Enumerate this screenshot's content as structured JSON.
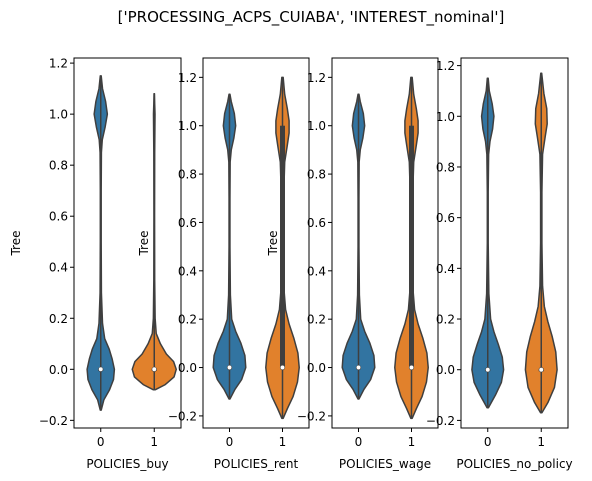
{
  "figure": {
    "title": "['PROCESSING_ACPS_CUIABA', 'INTEREST_nominal']"
  },
  "colors": {
    "category_0": "#3274A1",
    "category_1": "#E1812C",
    "outline": "#3f3f3f",
    "box": "#3f3f3f",
    "median": "#ffffff"
  },
  "chart_data": [
    {
      "type": "violin",
      "xlabel": "POLICIES_buy",
      "ylabel": "Tree",
      "categories": [
        "0",
        "1"
      ],
      "ylim": [
        -0.23,
        1.22
      ],
      "yticks": [
        -0.2,
        0.0,
        0.2,
        0.4,
        0.6,
        0.8,
        1.0,
        1.2
      ],
      "ytick_labels": [
        "−0.2",
        "0.0",
        "0.2",
        "0.4",
        "0.6",
        "0.8",
        "1.0",
        "1.2"
      ],
      "series": [
        {
          "category": "0",
          "min": -0.16,
          "max": 1.15,
          "median": 0.0,
          "q1": 0.0,
          "q3": 0.0,
          "density": [
            [
              -0.16,
              0.02
            ],
            [
              -0.12,
              0.14
            ],
            [
              -0.08,
              0.4
            ],
            [
              -0.04,
              0.58
            ],
            [
              0.0,
              0.62
            ],
            [
              0.04,
              0.52
            ],
            [
              0.08,
              0.38
            ],
            [
              0.12,
              0.18
            ],
            [
              0.18,
              0.08
            ],
            [
              0.3,
              0.03
            ],
            [
              0.5,
              0.02
            ],
            [
              0.7,
              0.02
            ],
            [
              0.85,
              0.03
            ],
            [
              0.9,
              0.07
            ],
            [
              0.95,
              0.2
            ],
            [
              1.0,
              0.3
            ],
            [
              1.05,
              0.22
            ],
            [
              1.1,
              0.08
            ],
            [
              1.15,
              0.02
            ]
          ]
        },
        {
          "category": "1",
          "min": -0.08,
          "max": 1.08,
          "median": 0.0,
          "q1": 0.0,
          "q3": 0.0,
          "density": [
            [
              -0.08,
              0.05
            ],
            [
              -0.06,
              0.5
            ],
            [
              -0.03,
              0.9
            ],
            [
              0.0,
              1.0
            ],
            [
              0.03,
              0.88
            ],
            [
              0.06,
              0.55
            ],
            [
              0.1,
              0.28
            ],
            [
              0.14,
              0.09
            ],
            [
              0.2,
              0.04
            ],
            [
              0.35,
              0.02
            ],
            [
              0.6,
              0.015
            ],
            [
              0.85,
              0.02
            ],
            [
              0.95,
              0.03
            ],
            [
              1.0,
              0.035
            ],
            [
              1.04,
              0.02
            ],
            [
              1.08,
              0.01
            ]
          ]
        }
      ]
    },
    {
      "type": "violin",
      "xlabel": "POLICIES_rent",
      "ylabel": "Tree",
      "categories": [
        "0",
        "1"
      ],
      "ylim": [
        -0.25,
        1.28
      ],
      "yticks": [
        -0.2,
        0.0,
        0.2,
        0.4,
        0.6,
        0.8,
        1.0,
        1.2
      ],
      "ytick_labels": [
        "−0.2",
        "0.0",
        "0.2",
        "0.4",
        "0.6",
        "0.8",
        "1.0",
        "1.2"
      ],
      "series": [
        {
          "category": "0",
          "min": -0.13,
          "max": 1.13,
          "median": 0.0,
          "q1": 0.0,
          "q3": 0.0,
          "density": [
            [
              -0.13,
              0.02
            ],
            [
              -0.09,
              0.25
            ],
            [
              -0.05,
              0.55
            ],
            [
              0.0,
              0.74
            ],
            [
              0.05,
              0.7
            ],
            [
              0.1,
              0.52
            ],
            [
              0.15,
              0.28
            ],
            [
              0.2,
              0.1
            ],
            [
              0.3,
              0.04
            ],
            [
              0.5,
              0.02
            ],
            [
              0.7,
              0.02
            ],
            [
              0.85,
              0.03
            ],
            [
              0.9,
              0.08
            ],
            [
              0.95,
              0.2
            ],
            [
              1.0,
              0.28
            ],
            [
              1.05,
              0.22
            ],
            [
              1.1,
              0.08
            ],
            [
              1.13,
              0.02
            ]
          ]
        },
        {
          "category": "1",
          "min": -0.21,
          "max": 1.2,
          "median": 0.0,
          "q1": 0.0,
          "q3": 1.0,
          "density": [
            [
              -0.21,
              0.03
            ],
            [
              -0.17,
              0.22
            ],
            [
              -0.12,
              0.48
            ],
            [
              -0.06,
              0.68
            ],
            [
              0.0,
              0.76
            ],
            [
              0.06,
              0.7
            ],
            [
              0.12,
              0.52
            ],
            [
              0.18,
              0.3
            ],
            [
              0.24,
              0.14
            ],
            [
              0.32,
              0.07
            ],
            [
              0.5,
              0.04
            ],
            [
              0.7,
              0.05
            ],
            [
              0.85,
              0.1
            ],
            [
              0.92,
              0.22
            ],
            [
              0.97,
              0.3
            ],
            [
              1.02,
              0.3
            ],
            [
              1.07,
              0.22
            ],
            [
              1.13,
              0.1
            ],
            [
              1.2,
              0.03
            ]
          ]
        }
      ]
    },
    {
      "type": "violin",
      "xlabel": "POLICIES_wage",
      "ylabel": "Tree",
      "categories": [
        "0",
        "1"
      ],
      "ylim": [
        -0.25,
        1.28
      ],
      "yticks": [
        -0.2,
        0.0,
        0.2,
        0.4,
        0.6,
        0.8,
        1.0,
        1.2
      ],
      "ytick_labels": [
        "−0.2",
        "0.0",
        "0.2",
        "0.4",
        "0.6",
        "0.8",
        "1.0",
        "1.2"
      ],
      "series": [
        {
          "category": "0",
          "min": -0.13,
          "max": 1.13,
          "median": 0.0,
          "q1": 0.0,
          "q3": 0.0,
          "density": [
            [
              -0.13,
              0.02
            ],
            [
              -0.09,
              0.25
            ],
            [
              -0.05,
              0.55
            ],
            [
              0.0,
              0.74
            ],
            [
              0.05,
              0.7
            ],
            [
              0.1,
              0.52
            ],
            [
              0.15,
              0.28
            ],
            [
              0.2,
              0.1
            ],
            [
              0.3,
              0.04
            ],
            [
              0.5,
              0.02
            ],
            [
              0.7,
              0.02
            ],
            [
              0.85,
              0.03
            ],
            [
              0.9,
              0.08
            ],
            [
              0.95,
              0.2
            ],
            [
              1.0,
              0.28
            ],
            [
              1.05,
              0.22
            ],
            [
              1.1,
              0.08
            ],
            [
              1.13,
              0.02
            ]
          ]
        },
        {
          "category": "1",
          "min": -0.21,
          "max": 1.2,
          "median": 0.0,
          "q1": 0.0,
          "q3": 1.0,
          "density": [
            [
              -0.21,
              0.03
            ],
            [
              -0.17,
              0.22
            ],
            [
              -0.12,
              0.48
            ],
            [
              -0.06,
              0.68
            ],
            [
              0.0,
              0.76
            ],
            [
              0.06,
              0.7
            ],
            [
              0.12,
              0.52
            ],
            [
              0.18,
              0.3
            ],
            [
              0.24,
              0.14
            ],
            [
              0.32,
              0.07
            ],
            [
              0.5,
              0.04
            ],
            [
              0.7,
              0.05
            ],
            [
              0.85,
              0.1
            ],
            [
              0.92,
              0.22
            ],
            [
              0.97,
              0.3
            ],
            [
              1.02,
              0.3
            ],
            [
              1.07,
              0.22
            ],
            [
              1.13,
              0.1
            ],
            [
              1.2,
              0.03
            ]
          ]
        }
      ]
    },
    {
      "type": "violin",
      "xlabel": "POLICIES_no_policy",
      "ylabel": "",
      "categories": [
        "0",
        "1"
      ],
      "ylim": [
        -0.23,
        1.23
      ],
      "yticks": [
        -0.2,
        0.0,
        0.2,
        0.4,
        0.6,
        0.8,
        1.0,
        1.2
      ],
      "ytick_labels": [
        "−0.2",
        "0.0",
        "0.2",
        "0.4",
        "0.6",
        "0.8",
        "1.0",
        "1.2"
      ],
      "series": [
        {
          "category": "0",
          "min": -0.15,
          "max": 1.15,
          "median": 0.0,
          "q1": 0.0,
          "q3": 0.0,
          "density": [
            [
              -0.15,
              0.03
            ],
            [
              -0.1,
              0.35
            ],
            [
              -0.05,
              0.62
            ],
            [
              0.0,
              0.72
            ],
            [
              0.05,
              0.66
            ],
            [
              0.1,
              0.48
            ],
            [
              0.15,
              0.28
            ],
            [
              0.2,
              0.13
            ],
            [
              0.3,
              0.05
            ],
            [
              0.5,
              0.02
            ],
            [
              0.7,
              0.02
            ],
            [
              0.85,
              0.04
            ],
            [
              0.9,
              0.1
            ],
            [
              0.95,
              0.22
            ],
            [
              1.0,
              0.28
            ],
            [
              1.05,
              0.2
            ],
            [
              1.1,
              0.07
            ],
            [
              1.15,
              0.02
            ]
          ]
        },
        {
          "category": "1",
          "min": -0.17,
          "max": 1.17,
          "median": 0.0,
          "q1": 0.0,
          "q3": 0.0,
          "density": [
            [
              -0.17,
              0.03
            ],
            [
              -0.13,
              0.3
            ],
            [
              -0.07,
              0.6
            ],
            [
              0.0,
              0.72
            ],
            [
              0.07,
              0.66
            ],
            [
              0.13,
              0.5
            ],
            [
              0.19,
              0.3
            ],
            [
              0.25,
              0.14
            ],
            [
              0.33,
              0.06
            ],
            [
              0.5,
              0.03
            ],
            [
              0.7,
              0.03
            ],
            [
              0.85,
              0.06
            ],
            [
              0.92,
              0.18
            ],
            [
              0.97,
              0.27
            ],
            [
              1.03,
              0.25
            ],
            [
              1.09,
              0.12
            ],
            [
              1.17,
              0.02
            ]
          ]
        }
      ]
    }
  ]
}
